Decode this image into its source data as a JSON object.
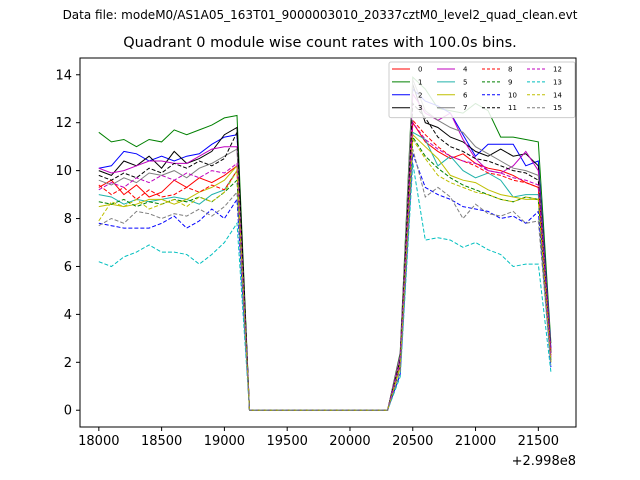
{
  "header": {
    "suptitle": "Data file: modeM0/AS1A05_163T01_9000003010_20337cztM0_level2_quad_clean.evt",
    "title": "Quadrant 0 module wise count rates with 100.0s bins."
  },
  "chart_data": {
    "type": "line",
    "title": "Quadrant 0 module wise count rates with 100.0s bins.",
    "xlabel": "",
    "ylabel": "",
    "x_offset_label": "+2.998e8",
    "xlim": [
      17850,
      21800
    ],
    "ylim": [
      -0.7,
      14.7
    ],
    "x_ticks": [
      18000,
      18500,
      19000,
      19500,
      20000,
      20500,
      21000,
      21500
    ],
    "y_ticks": [
      0,
      2,
      4,
      6,
      8,
      10,
      12,
      14
    ],
    "x": [
      18000,
      18100,
      18200,
      18300,
      18400,
      18500,
      18600,
      18700,
      18800,
      18900,
      19000,
      19100,
      19200,
      19300,
      19400,
      19500,
      19600,
      19700,
      19800,
      19900,
      20000,
      20100,
      20200,
      20300,
      20400,
      20500,
      20600,
      20700,
      20800,
      20900,
      21000,
      21100,
      21200,
      21300,
      21400,
      21500,
      21600
    ],
    "legend": {
      "location": "upper right",
      "ncol": 4
    },
    "series": [
      {
        "name": "0",
        "color": "#ff0000",
        "dash": "solid",
        "values": [
          9.3,
          9.6,
          9.0,
          9.4,
          8.9,
          9.1,
          9.6,
          9.3,
          9.7,
          9.5,
          9.8,
          10.2,
          0.0,
          0.0,
          0.0,
          0.0,
          0.0,
          0.0,
          0.0,
          0.0,
          0.0,
          0.0,
          0.0,
          0.0,
          2.0,
          12.0,
          11.2,
          10.8,
          10.5,
          10.7,
          10.3,
          10.1,
          10.0,
          9.8,
          9.5,
          9.3,
          2.5
        ]
      },
      {
        "name": "1",
        "color": "#008000",
        "dash": "solid",
        "values": [
          11.6,
          11.2,
          11.3,
          11.0,
          11.3,
          11.2,
          11.7,
          11.5,
          11.7,
          11.9,
          12.2,
          12.3,
          0.0,
          0.0,
          0.0,
          0.0,
          0.0,
          0.0,
          0.0,
          0.0,
          0.0,
          0.0,
          0.0,
          0.0,
          2.4,
          13.9,
          13.4,
          12.6,
          12.5,
          12.4,
          12.8,
          12.5,
          11.4,
          11.4,
          11.3,
          11.2,
          2.8
        ]
      },
      {
        "name": "2",
        "color": "#0000ff",
        "dash": "solid",
        "values": [
          10.1,
          10.2,
          10.8,
          10.7,
          10.4,
          10.6,
          10.4,
          10.6,
          10.7,
          11.1,
          11.4,
          11.5,
          0.0,
          0.0,
          0.0,
          0.0,
          0.0,
          0.0,
          0.0,
          0.0,
          0.0,
          0.0,
          0.0,
          0.0,
          2.2,
          13.4,
          12.9,
          12.7,
          12.4,
          11.5,
          10.6,
          11.1,
          11.1,
          11.1,
          10.2,
          10.4,
          2.6
        ]
      },
      {
        "name": "3",
        "color": "#000000",
        "dash": "solid",
        "values": [
          10.0,
          9.8,
          10.4,
          10.2,
          10.6,
          10.1,
          10.8,
          10.3,
          10.5,
          10.8,
          11.5,
          11.8,
          0.0,
          0.0,
          0.0,
          0.0,
          0.0,
          0.0,
          0.0,
          0.0,
          0.0,
          0.0,
          0.0,
          0.0,
          2.2,
          13.6,
          12.0,
          11.8,
          11.4,
          11.2,
          10.8,
          10.6,
          10.9,
          10.6,
          10.7,
          10.2,
          2.4
        ]
      },
      {
        "name": "4",
        "color": "#bf00bf",
        "dash": "solid",
        "values": [
          10.1,
          9.9,
          10.0,
          10.2,
          10.4,
          10.4,
          10.3,
          10.3,
          10.6,
          10.9,
          11.0,
          11.0,
          0.0,
          0.0,
          0.0,
          0.0,
          0.0,
          0.0,
          0.0,
          0.0,
          0.0,
          0.0,
          0.0,
          0.0,
          2.3,
          13.2,
          12.4,
          12.1,
          12.4,
          11.3,
          10.5,
          10.0,
          9.9,
          10.2,
          10.8,
          10.0,
          2.5
        ]
      },
      {
        "name": "5",
        "color": "#20b2aa",
        "dash": "solid",
        "values": [
          9.0,
          8.9,
          8.6,
          8.8,
          8.7,
          8.8,
          8.9,
          8.8,
          8.6,
          9.0,
          9.2,
          10.0,
          0.0,
          0.0,
          0.0,
          0.0,
          0.0,
          0.0,
          0.0,
          0.0,
          0.0,
          0.0,
          0.0,
          0.0,
          2.0,
          11.6,
          11.3,
          10.2,
          10.6,
          10.0,
          9.7,
          9.9,
          9.6,
          8.9,
          9.0,
          9.0,
          2.1
        ]
      },
      {
        "name": "6",
        "color": "#bfbf00",
        "dash": "solid",
        "values": [
          8.5,
          8.6,
          8.5,
          8.6,
          8.8,
          8.8,
          8.6,
          8.8,
          9.1,
          9.3,
          9.6,
          10.2,
          0.0,
          0.0,
          0.0,
          0.0,
          0.0,
          0.0,
          0.0,
          0.0,
          0.0,
          0.0,
          0.0,
          0.0,
          2.0,
          11.5,
          11.0,
          10.5,
          9.8,
          9.6,
          9.5,
          9.2,
          9.0,
          8.9,
          8.8,
          8.8,
          2.0
        ]
      },
      {
        "name": "7",
        "color": "#7f7f7f",
        "dash": "solid",
        "values": [
          9.6,
          9.4,
          9.7,
          9.5,
          9.9,
          9.8,
          10.0,
          9.7,
          10.1,
          10.3,
          10.6,
          10.9,
          0.0,
          0.0,
          0.0,
          0.0,
          0.0,
          0.0,
          0.0,
          0.0,
          0.0,
          0.0,
          0.0,
          0.0,
          2.2,
          13.8,
          12.5,
          12.1,
          11.8,
          11.6,
          11.0,
          10.7,
          10.4,
          10.1,
          10.0,
          9.8,
          2.4
        ]
      },
      {
        "name": "8",
        "color": "#ff0000",
        "dash": "dashed",
        "values": [
          9.4,
          9.0,
          9.3,
          8.8,
          9.2,
          8.9,
          9.0,
          9.3,
          9.1,
          9.4,
          9.2,
          10.0,
          0.0,
          0.0,
          0.0,
          0.0,
          0.0,
          0.0,
          0.0,
          0.0,
          0.0,
          0.0,
          0.0,
          0.0,
          1.9,
          12.1,
          11.5,
          11.0,
          10.6,
          10.4,
          10.2,
          9.9,
          9.8,
          9.6,
          9.5,
          9.3,
          2.3
        ]
      },
      {
        "name": "9",
        "color": "#008000",
        "dash": "dashed",
        "values": [
          8.7,
          8.6,
          8.8,
          8.5,
          8.7,
          8.6,
          8.8,
          8.7,
          8.9,
          8.7,
          9.1,
          9.6,
          0.0,
          0.0,
          0.0,
          0.0,
          0.0,
          0.0,
          0.0,
          0.0,
          0.0,
          0.0,
          0.0,
          0.0,
          1.8,
          11.4,
          10.6,
          10.1,
          9.7,
          9.4,
          9.2,
          9.0,
          8.8,
          8.7,
          8.9,
          8.8,
          2.0
        ]
      },
      {
        "name": "10",
        "color": "#0000ff",
        "dash": "dashed",
        "values": [
          7.8,
          7.7,
          7.6,
          7.6,
          7.6,
          7.8,
          8.1,
          7.6,
          7.9,
          8.4,
          8.0,
          8.8,
          0.0,
          0.0,
          0.0,
          0.0,
          0.0,
          0.0,
          0.0,
          0.0,
          0.0,
          0.0,
          0.0,
          0.0,
          1.5,
          10.7,
          9.3,
          9.0,
          8.8,
          8.5,
          8.4,
          8.3,
          8.0,
          8.1,
          7.8,
          8.3,
          1.8
        ]
      },
      {
        "name": "11",
        "color": "#000000",
        "dash": "dashed",
        "values": [
          9.8,
          9.6,
          9.9,
          9.7,
          10.1,
          9.9,
          10.3,
          10.1,
          10.4,
          10.2,
          10.5,
          11.6,
          0.0,
          0.0,
          0.0,
          0.0,
          0.0,
          0.0,
          0.0,
          0.0,
          0.0,
          0.0,
          0.0,
          0.0,
          2.1,
          12.8,
          12.2,
          11.4,
          11.0,
          10.8,
          10.5,
          10.4,
          10.2,
          10.0,
          9.9,
          9.6,
          2.3
        ]
      },
      {
        "name": "12",
        "color": "#bf00bf",
        "dash": "dashed",
        "values": [
          9.2,
          9.5,
          9.3,
          9.7,
          9.5,
          9.8,
          9.6,
          9.9,
          9.7,
          10.0,
          9.9,
          10.3,
          0.0,
          0.0,
          0.0,
          0.0,
          0.0,
          0.0,
          0.0,
          0.0,
          0.0,
          0.0,
          0.0,
          0.0,
          2.0,
          12.0,
          11.3,
          10.9,
          10.6,
          10.4,
          10.3,
          10.0,
          9.9,
          9.7,
          9.6,
          9.4,
          2.2
        ]
      },
      {
        "name": "13",
        "color": "#00bfbf",
        "dash": "dashed",
        "values": [
          6.2,
          6.0,
          6.4,
          6.6,
          6.9,
          6.6,
          6.6,
          6.5,
          6.1,
          6.5,
          7.0,
          7.8,
          0.0,
          0.0,
          0.0,
          0.0,
          0.0,
          0.0,
          0.0,
          0.0,
          0.0,
          0.0,
          0.0,
          0.0,
          1.4,
          10.3,
          7.1,
          7.2,
          7.1,
          6.8,
          7.0,
          6.7,
          6.5,
          6.0,
          6.1,
          6.1,
          1.6
        ]
      },
      {
        "name": "14",
        "color": "#bfbf00",
        "dash": "dashed",
        "values": [
          7.9,
          8.7,
          8.5,
          8.8,
          8.4,
          8.6,
          8.8,
          8.5,
          8.9,
          8.7,
          9.1,
          10.0,
          0.0,
          0.0,
          0.0,
          0.0,
          0.0,
          0.0,
          0.0,
          0.0,
          0.0,
          0.0,
          0.0,
          0.0,
          1.8,
          11.3,
          10.5,
          9.8,
          9.5,
          9.3,
          9.1,
          9.0,
          8.8,
          8.7,
          8.9,
          8.8,
          2.0
        ]
      },
      {
        "name": "15",
        "color": "#7f7f7f",
        "dash": "dashed",
        "values": [
          7.7,
          8.0,
          7.8,
          8.3,
          8.2,
          8.0,
          8.2,
          8.1,
          8.4,
          8.1,
          8.5,
          9.1,
          0.0,
          0.0,
          0.0,
          0.0,
          0.0,
          0.0,
          0.0,
          0.0,
          0.0,
          0.0,
          0.0,
          0.0,
          1.6,
          10.9,
          8.9,
          9.3,
          8.9,
          8.0,
          8.6,
          8.2,
          8.1,
          8.3,
          7.8,
          7.9,
          1.9
        ]
      }
    ]
  }
}
